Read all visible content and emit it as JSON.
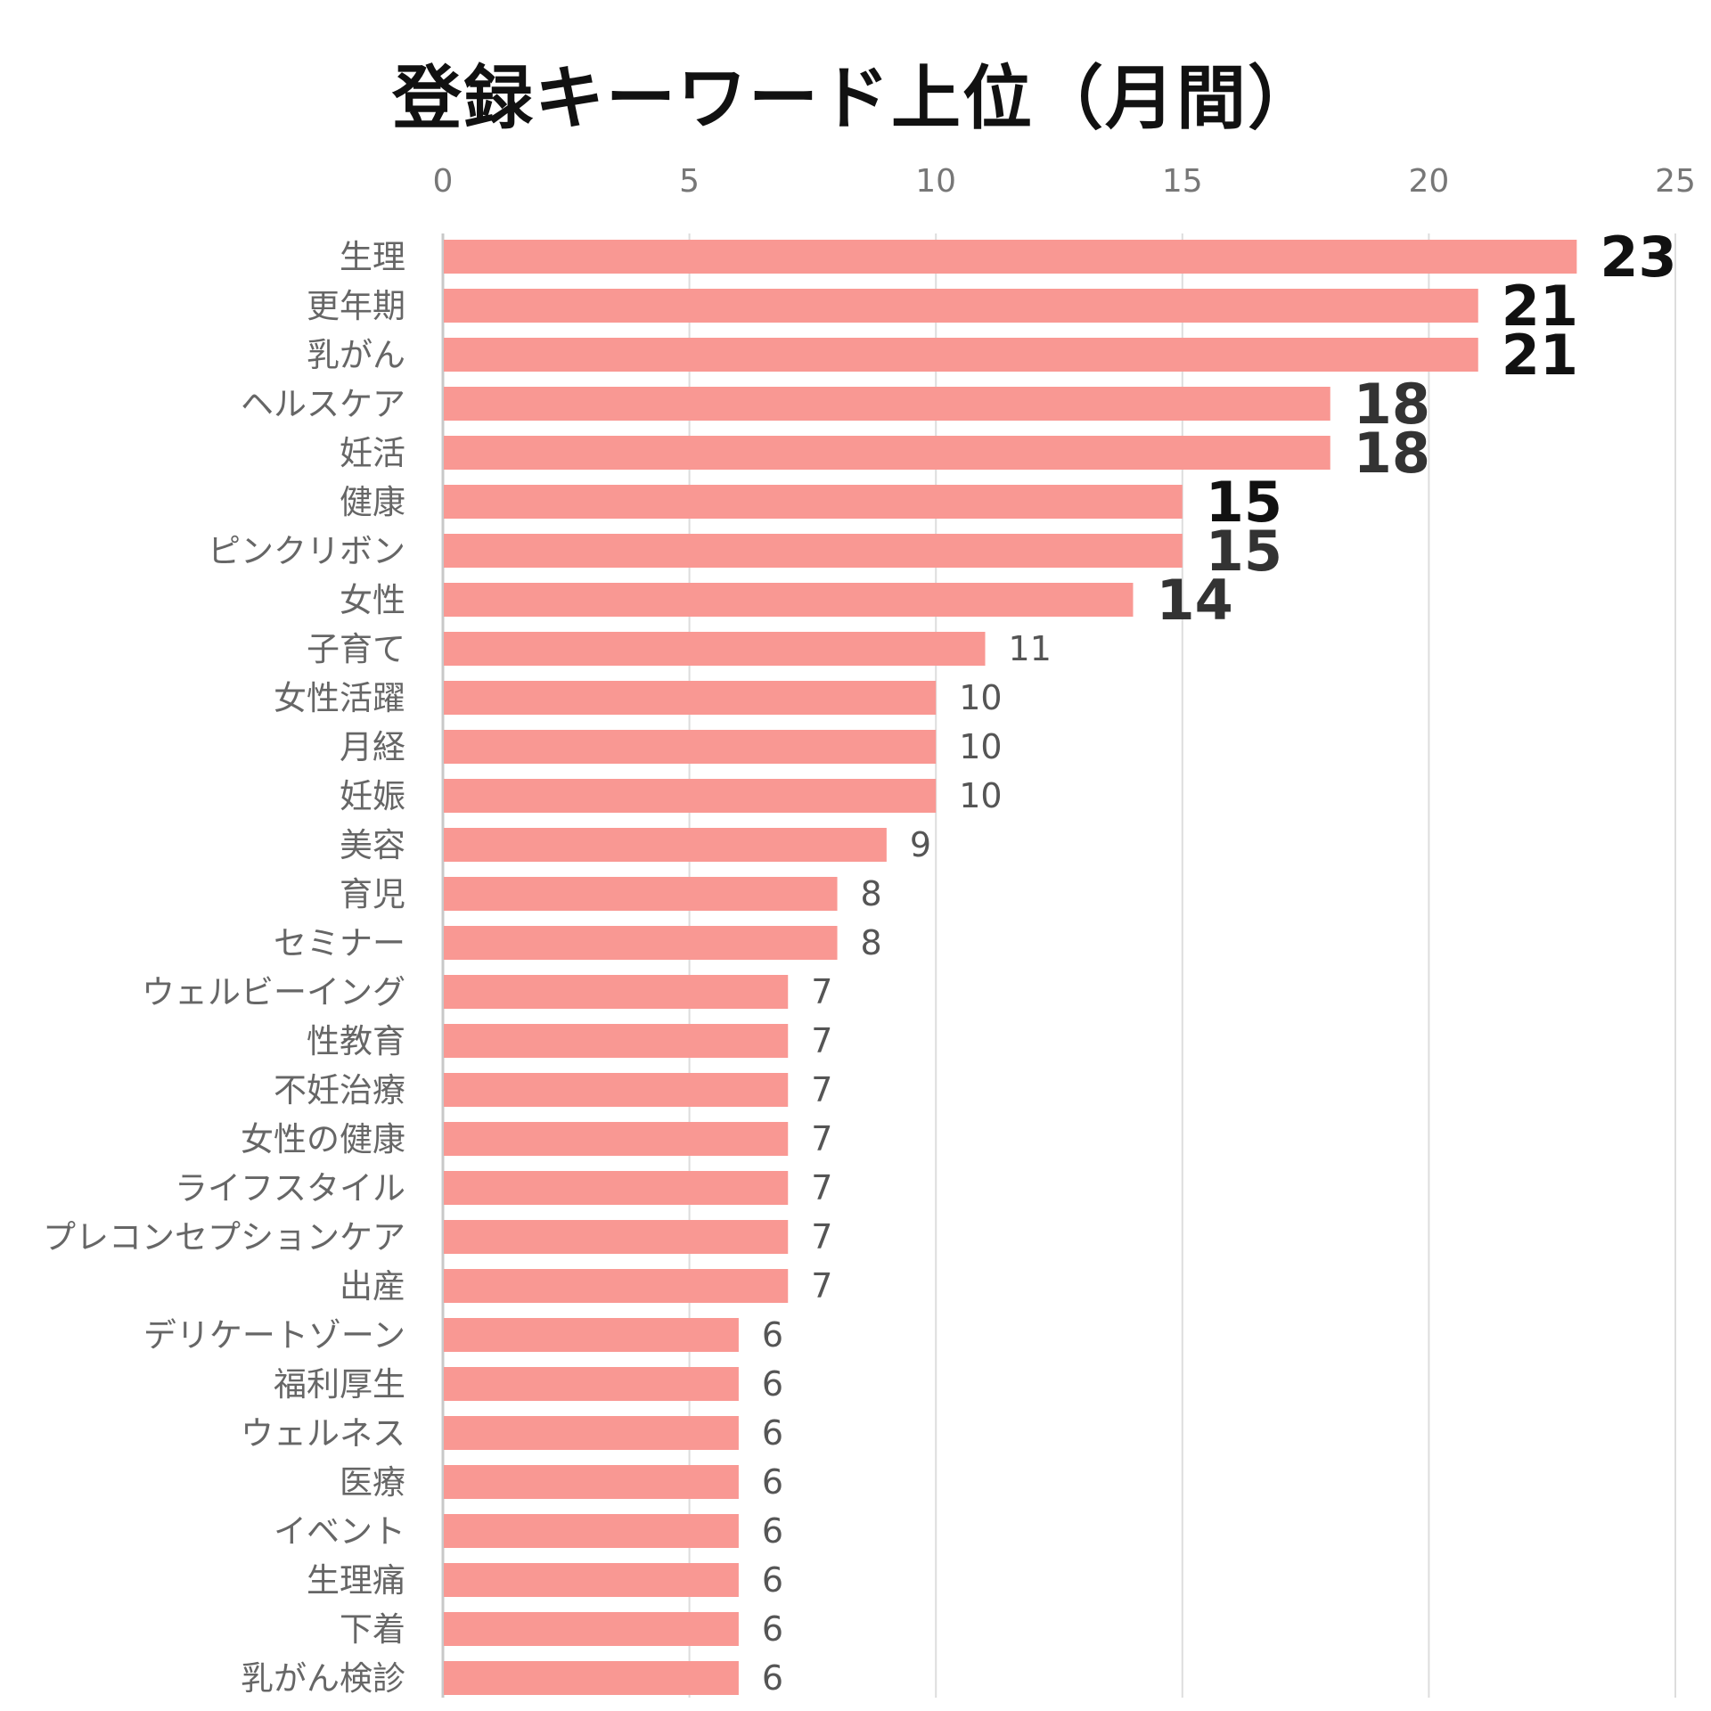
{
  "chart_data": {
    "type": "bar",
    "orientation": "horizontal",
    "title": "登録キーワード上位（月間）",
    "xlabel": "",
    "ylabel": "",
    "xlim": [
      0,
      25
    ],
    "xticks": [
      "0",
      "5",
      "10",
      "15",
      "20",
      "25"
    ],
    "grid": true,
    "axis_position": "top",
    "bar_color": "#F99893",
    "categories": [
      "生理",
      "更年期",
      "乳がん",
      "ヘルスケア",
      "妊活",
      "健康",
      "ピンクリボン",
      "女性",
      "子育て",
      "女性活躍",
      "月経",
      "妊娠",
      "美容",
      "育児",
      "セミナー",
      "ウェルビーイング",
      "性教育",
      "不妊治療",
      "女性の健康",
      "ライフスタイル",
      "プレコンセプションケア",
      "出産",
      "デリケートゾーン",
      "福利厚生",
      "ウェルネス",
      "医療",
      "イベント",
      "生理痛",
      "下着",
      "乳がん検診"
    ],
    "values": [
      23,
      21,
      21,
      18,
      18,
      15,
      15,
      14,
      11,
      10,
      10,
      10,
      9,
      8,
      8,
      7,
      7,
      7,
      7,
      7,
      7,
      7,
      6,
      6,
      6,
      6,
      6,
      6,
      6,
      6
    ],
    "value_labels": [
      "23",
      "21",
      "21",
      "18",
      "18",
      "15",
      "15",
      "14",
      "11",
      "10",
      "10",
      "10",
      "9",
      "8",
      "8",
      "7",
      "7",
      "7",
      "7",
      "7",
      "7",
      "7",
      "6",
      "6",
      "6",
      "6",
      "6",
      "6",
      "6",
      "6"
    ]
  }
}
